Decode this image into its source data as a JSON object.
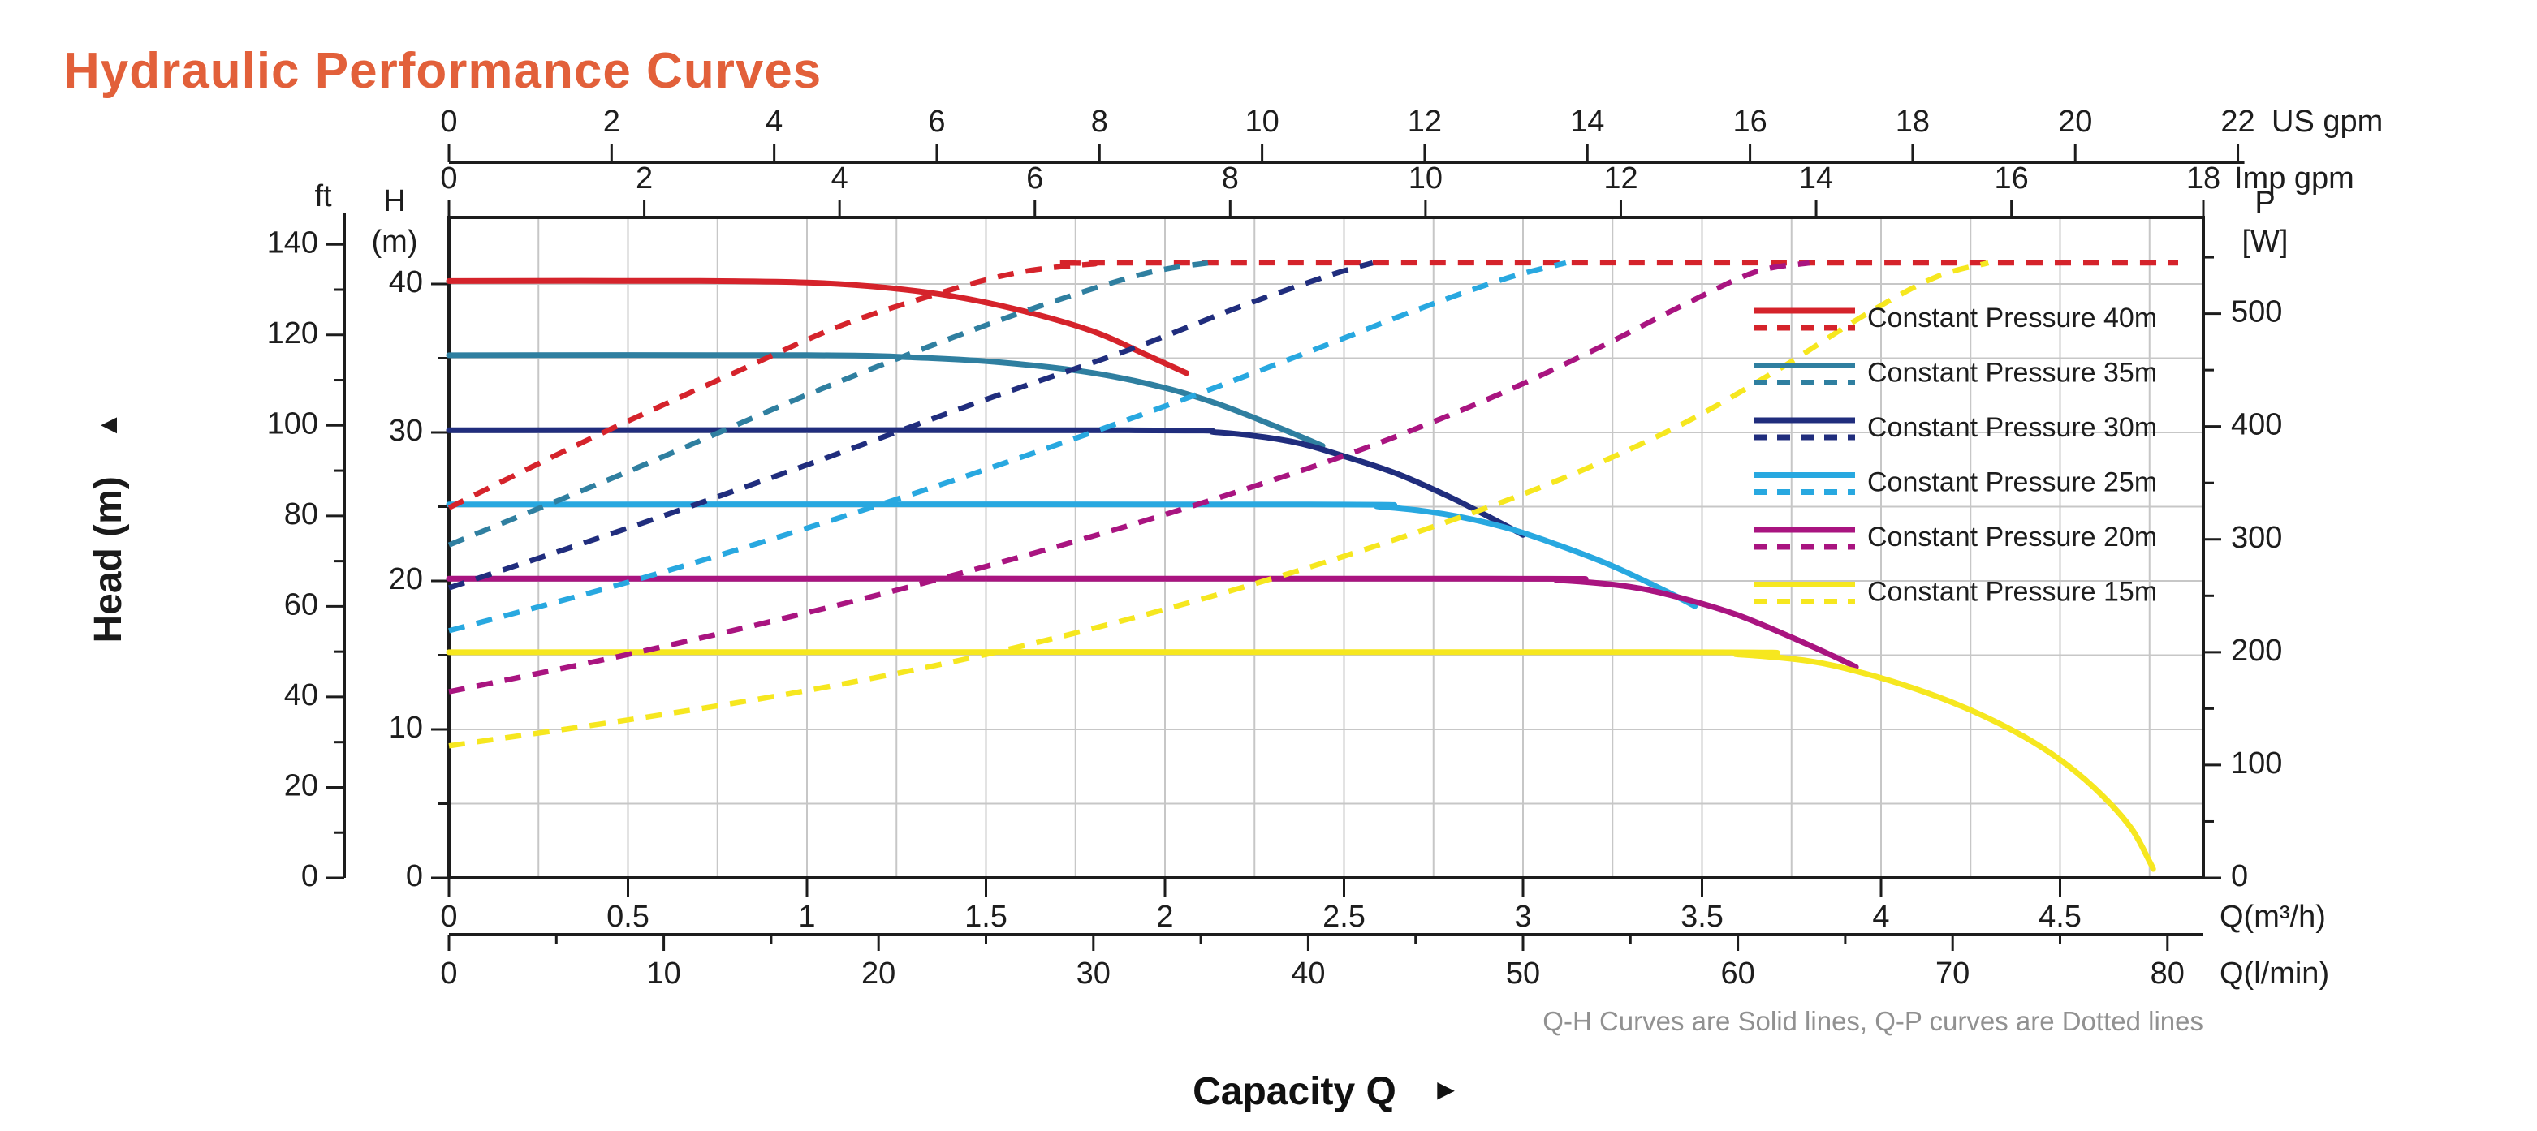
{
  "title": "Hydraulic Performance Curves",
  "title_color": "#E2603A",
  "head_axis_title": "Head (m)",
  "capacity_axis_title": "Capacity Q",
  "footnote": "Q-H Curves are Solid lines, Q-P curves are Dotted lines",
  "icons": {
    "up_arrow": "▲",
    "right_arrow": "►"
  },
  "colors": {
    "grid": "#c7c7c7",
    "axis": "#1c1c1c",
    "tick_text": "#1d1d1d",
    "footnote_text": "#919191"
  },
  "chart_data": {
    "type": "line",
    "title": "Hydraulic Performance Curves",
    "xlabel": "Capacity Q",
    "ylabel": "Head (m)",
    "legend_position": "right-inside",
    "grid": true,
    "note": "Q-H Curves are Solid lines, Q-P curves are Dotted lines",
    "axes": {
      "x_bottom_m3h": {
        "unit": "Q(m³/h)",
        "range": [
          0,
          4.9
        ],
        "ticks": [
          {
            "v": 0,
            "t": "0"
          },
          {
            "v": 0.5,
            "t": "0.5"
          },
          {
            "v": 1,
            "t": "1"
          },
          {
            "v": 1.5,
            "t": "1.5"
          },
          {
            "v": 2,
            "t": "2"
          },
          {
            "v": 2.5,
            "t": "2.5"
          },
          {
            "v": 3,
            "t": "3"
          },
          {
            "v": 3.5,
            "t": "3.5"
          },
          {
            "v": 4,
            "t": "4"
          },
          {
            "v": 4.5,
            "t": "4.5"
          }
        ]
      },
      "x_bottom_lmin": {
        "unit": "Q(l/min)",
        "range": [
          0,
          82
        ],
        "ticks": [
          {
            "v": 0,
            "t": "0"
          },
          {
            "v": 10,
            "t": "10"
          },
          {
            "v": 20,
            "t": "20"
          },
          {
            "v": 30,
            "t": "30"
          },
          {
            "v": 40,
            "t": "40"
          },
          {
            "v": 50,
            "t": "50"
          },
          {
            "v": 60,
            "t": "60"
          },
          {
            "v": 70,
            "t": "70"
          },
          {
            "v": 80,
            "t": "80"
          }
        ],
        "minor": [
          5,
          15,
          25,
          35,
          45,
          55,
          65,
          75
        ]
      },
      "x_top_usgpm": {
        "unit": "US gpm",
        "range": [
          0,
          22
        ],
        "ticks": [
          {
            "v": 0,
            "t": "0"
          },
          {
            "v": 2,
            "t": "2"
          },
          {
            "v": 4,
            "t": "4"
          },
          {
            "v": 6,
            "t": "6"
          },
          {
            "v": 8,
            "t": "8"
          },
          {
            "v": 10,
            "t": "10"
          },
          {
            "v": 12,
            "t": "12"
          },
          {
            "v": 14,
            "t": "14"
          },
          {
            "v": 16,
            "t": "16"
          },
          {
            "v": 18,
            "t": "18"
          },
          {
            "v": 20,
            "t": "20"
          },
          {
            "v": 22,
            "t": "22"
          }
        ]
      },
      "x_top_impgpm": {
        "unit": "Imp gpm",
        "range": [
          0,
          18
        ],
        "ticks": [
          {
            "v": 0,
            "t": "0"
          },
          {
            "v": 2,
            "t": "2"
          },
          {
            "v": 4,
            "t": "4"
          },
          {
            "v": 6,
            "t": "6"
          },
          {
            "v": 8,
            "t": "8"
          },
          {
            "v": 10,
            "t": "10"
          },
          {
            "v": 12,
            "t": "12"
          },
          {
            "v": 14,
            "t": "14"
          },
          {
            "v": 16,
            "t": "16"
          },
          {
            "v": 18,
            "t": "18"
          }
        ]
      },
      "y_left_h_m": {
        "unit_lines": [
          "H",
          "(m)"
        ],
        "range": [
          0,
          44
        ],
        "ticks": [
          {
            "v": 0,
            "t": "0"
          },
          {
            "v": 10,
            "t": "10"
          },
          {
            "v": 20,
            "t": "20"
          },
          {
            "v": 30,
            "t": "30"
          },
          {
            "v": 40,
            "t": "40"
          }
        ],
        "minor": [
          5,
          15,
          25,
          35
        ]
      },
      "y_left_ft": {
        "unit": "ft",
        "range": [
          0,
          145
        ],
        "ticks": [
          {
            "v": 0,
            "t": "0"
          },
          {
            "v": 20,
            "t": "20"
          },
          {
            "v": 40,
            "t": "40"
          },
          {
            "v": 60,
            "t": "60"
          },
          {
            "v": 80,
            "t": "80"
          },
          {
            "v": 100,
            "t": "100"
          },
          {
            "v": 120,
            "t": "120"
          },
          {
            "v": 140,
            "t": "140"
          }
        ],
        "minor": [
          10,
          30,
          50,
          70,
          90,
          110,
          130
        ]
      },
      "y_right_p_w": {
        "unit_lines": [
          "P",
          "[W]"
        ],
        "range": [
          0,
          585
        ],
        "ticks": [
          {
            "v": 0,
            "t": "0"
          },
          {
            "v": 100,
            "t": "100"
          },
          {
            "v": 200,
            "t": "200"
          },
          {
            "v": 300,
            "t": "300"
          },
          {
            "v": 400,
            "t": "400"
          },
          {
            "v": 500,
            "t": "500"
          }
        ],
        "minor": [
          50,
          150,
          250,
          350,
          450,
          550
        ]
      }
    },
    "max_power_plateau_w": 545,
    "series": [
      {
        "name": "Constant Pressure 40m",
        "color": "#D5232B",
        "pressure_m": 40,
        "qh": [
          [
            0,
            40.2
          ],
          [
            0.7,
            40.2
          ],
          [
            1.0,
            40.1
          ],
          [
            1.2,
            39.8
          ],
          [
            1.4,
            39.2
          ],
          [
            1.6,
            38.2
          ],
          [
            1.8,
            36.8
          ],
          [
            1.95,
            35.2
          ],
          [
            2.06,
            34.0
          ]
        ],
        "qp": [
          [
            0,
            328
          ],
          [
            0.4,
            390
          ],
          [
            0.8,
            448
          ],
          [
            1.1,
            490
          ],
          [
            1.4,
            521
          ],
          [
            1.6,
            537
          ],
          [
            1.8,
            544
          ],
          [
            1.95,
            545
          ],
          [
            4.83,
            545
          ]
        ]
      },
      {
        "name": "Constant Pressure 35m",
        "color": "#2F7FA0",
        "pressure_m": 35,
        "qh": [
          [
            0,
            35.2
          ],
          [
            1.0,
            35.2
          ],
          [
            1.3,
            35.05
          ],
          [
            1.55,
            34.7
          ],
          [
            1.8,
            34.0
          ],
          [
            2.0,
            33.0
          ],
          [
            2.15,
            31.9
          ],
          [
            2.3,
            30.5
          ],
          [
            2.44,
            29.1
          ]
        ],
        "qp": [
          [
            0,
            295
          ],
          [
            0.5,
            360
          ],
          [
            1.0,
            428
          ],
          [
            1.4,
            478
          ],
          [
            1.7,
            512
          ],
          [
            1.95,
            536
          ],
          [
            2.12,
            545
          ]
        ]
      },
      {
        "name": "Constant Pressure 30m",
        "color": "#202D7D",
        "pressure_m": 30,
        "qh": [
          [
            0,
            30.15
          ],
          [
            1.9,
            30.15
          ],
          [
            2.15,
            30.0
          ],
          [
            2.35,
            29.4
          ],
          [
            2.5,
            28.4
          ],
          [
            2.65,
            27.2
          ],
          [
            2.8,
            25.6
          ],
          [
            2.93,
            24.0
          ],
          [
            3.0,
            23.1
          ]
        ],
        "qp": [
          [
            0,
            257
          ],
          [
            0.5,
            310
          ],
          [
            1.0,
            366
          ],
          [
            1.5,
            424
          ],
          [
            1.9,
            468
          ],
          [
            2.2,
            505
          ],
          [
            2.45,
            533
          ],
          [
            2.58,
            545
          ]
        ]
      },
      {
        "name": "Constant Pressure 25m",
        "color": "#28A8E0",
        "pressure_m": 25,
        "qh": [
          [
            0,
            25.15
          ],
          [
            2.4,
            25.15
          ],
          [
            2.6,
            25.0
          ],
          [
            2.78,
            24.5
          ],
          [
            2.95,
            23.6
          ],
          [
            3.1,
            22.4
          ],
          [
            3.25,
            21.0
          ],
          [
            3.4,
            19.3
          ],
          [
            3.48,
            18.3
          ]
        ],
        "qp": [
          [
            0,
            219
          ],
          [
            0.5,
            262
          ],
          [
            1.0,
            310
          ],
          [
            1.5,
            362
          ],
          [
            2.0,
            418
          ],
          [
            2.4,
            466
          ],
          [
            2.7,
            503
          ],
          [
            2.95,
            531
          ],
          [
            3.12,
            545
          ]
        ]
      },
      {
        "name": "Constant Pressure 20m",
        "color": "#A91480",
        "pressure_m": 20,
        "qh": [
          [
            0,
            20.15
          ],
          [
            2.9,
            20.15
          ],
          [
            3.1,
            20.05
          ],
          [
            3.3,
            19.6
          ],
          [
            3.45,
            18.8
          ],
          [
            3.6,
            17.7
          ],
          [
            3.75,
            16.2
          ],
          [
            3.87,
            14.9
          ],
          [
            3.93,
            14.2
          ]
        ],
        "qp": [
          [
            0,
            165
          ],
          [
            0.5,
            198
          ],
          [
            1.0,
            235
          ],
          [
            1.5,
            276
          ],
          [
            2.0,
            322
          ],
          [
            2.5,
            374
          ],
          [
            2.9,
            424
          ],
          [
            3.2,
            468
          ],
          [
            3.45,
            508
          ],
          [
            3.65,
            537
          ],
          [
            3.8,
            545
          ]
        ]
      },
      {
        "name": "Constant Pressure 15m",
        "color": "#F6E71F",
        "pressure_m": 15,
        "qh": [
          [
            0,
            15.2
          ],
          [
            3.4,
            15.2
          ],
          [
            3.6,
            15.05
          ],
          [
            3.8,
            14.6
          ],
          [
            3.95,
            13.8
          ],
          [
            4.1,
            12.7
          ],
          [
            4.25,
            11.3
          ],
          [
            4.4,
            9.5
          ],
          [
            4.52,
            7.6
          ],
          [
            4.62,
            5.5
          ],
          [
            4.7,
            3.3
          ],
          [
            4.75,
            1.1
          ],
          [
            4.76,
            0.6
          ]
        ],
        "qp": [
          [
            0,
            117
          ],
          [
            0.5,
            140
          ],
          [
            1.0,
            166
          ],
          [
            1.5,
            198
          ],
          [
            2.0,
            238
          ],
          [
            2.5,
            285
          ],
          [
            3.0,
            340
          ],
          [
            3.4,
            395
          ],
          [
            3.7,
            448
          ],
          [
            3.95,
            498
          ],
          [
            4.15,
            532
          ],
          [
            4.3,
            545
          ]
        ]
      }
    ]
  }
}
